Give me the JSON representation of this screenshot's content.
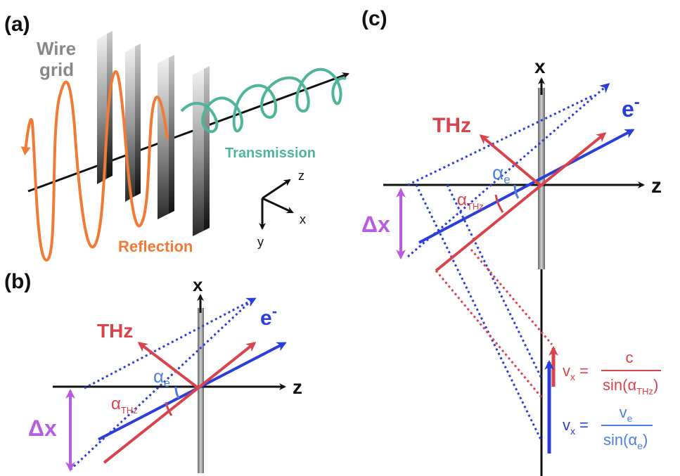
{
  "panels": {
    "a": "(a)",
    "b": "(b)",
    "c": "(c)"
  },
  "panel_a": {
    "wire_grid_label_1": "Wire",
    "wire_grid_label_2": "grid",
    "transmission": "Transmission",
    "reflection": "Reflection",
    "axes": {
      "z": "z",
      "x": "x",
      "y": "y"
    }
  },
  "panel_b": {
    "x_axis": "x",
    "z_axis": "z",
    "thz": "THz",
    "electron": "e",
    "electron_sup": "-",
    "alpha": "α",
    "alpha_e_sub": "e",
    "alpha_thz_sub": "THz",
    "delta_x": "Δx"
  },
  "panel_c": {
    "x_axis": "x",
    "z_axis": "z",
    "thz": "THz",
    "electron": "e",
    "electron_sup": "-",
    "alpha": "α",
    "alpha_e_sub": "e",
    "alpha_thz_sub": "THz",
    "delta_x": "Δx",
    "eq1_lhs": "v",
    "eq1_lhs_sub": "x",
    "eq1_eq": "=",
    "eq1_num": "c",
    "eq1_den_pre": "sin(α",
    "eq1_den_sub": "THz",
    "eq1_den_post": ")",
    "eq2_lhs": "v",
    "eq2_lhs_sub": "x",
    "eq2_eq": "=",
    "eq2_num": "v",
    "eq2_num_sub": "e",
    "eq2_den_pre": "sin(α",
    "eq2_den_sub": "e",
    "eq2_den_post": ")"
  },
  "colors": {
    "thz": "#d9434b",
    "electron": "#2b3fd8",
    "alpha_e": "#4d7fe0",
    "delta_x": "#b85ce0",
    "transmission": "#4fb59a",
    "reflection": "#f07a36"
  }
}
